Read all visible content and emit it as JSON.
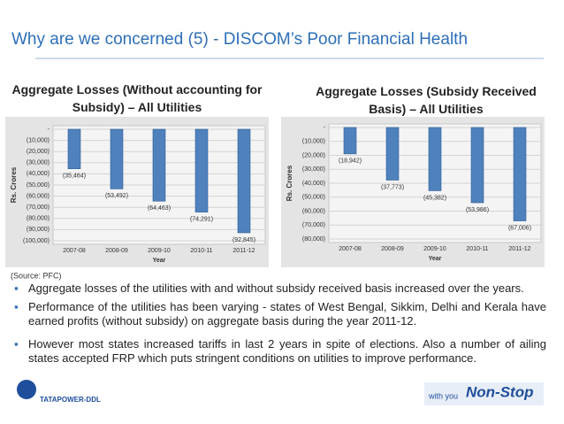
{
  "title": "Why are we concerned (5) - DISCOM’s Poor Financial Health",
  "chart_data": [
    {
      "type": "bar",
      "title": "Aggregate Losses (Without accounting for Subsidy) – All Utilities",
      "x_label": "Year",
      "y_label": "Rs. Crores",
      "categories": [
        "2007-08",
        "2008-09",
        "2009-10",
        "2010-11",
        "2011-12"
      ],
      "values": [
        -35464,
        -53492,
        -64463,
        -74291,
        -92845
      ],
      "value_labels": [
        "(35,464)",
        "(53,492)",
        "(64,463)",
        "(74,291)",
        "(92,845)"
      ],
      "color": "#4f81bd",
      "ylim": [
        -100000,
        0
      ],
      "yticks": [
        {
          "value": 0,
          "label": "-"
        },
        {
          "value": -10000,
          "label": "(10,000)"
        },
        {
          "value": -20000,
          "label": "(20,000)"
        },
        {
          "value": -30000,
          "label": "(30,000)"
        },
        {
          "value": -40000,
          "label": "(40,000)"
        },
        {
          "value": -50000,
          "label": "(50,000)"
        },
        {
          "value": -60000,
          "label": "(60,000)"
        },
        {
          "value": -70000,
          "label": "(70,000)"
        },
        {
          "value": -80000,
          "label": "(80,000)"
        },
        {
          "value": -90000,
          "label": "(90,000)"
        },
        {
          "value": -100000,
          "label": "(100,000)"
        }
      ]
    },
    {
      "type": "bar",
      "title": "Aggregate Losses (Subsidy Received Basis) – All Utilities",
      "x_label": "Year",
      "y_label": "Rs. Crores",
      "categories": [
        "2007-08",
        "2008-09",
        "2009-10",
        "2010-11",
        "2011-12"
      ],
      "values": [
        -18942,
        -37773,
        -45382,
        -53986,
        -67006
      ],
      "value_labels": [
        "(18,942)",
        "(37,773)",
        "(45,382)",
        "(53,986)",
        "(67,006)"
      ],
      "color": "#4f81bd",
      "ylim": [
        -80000,
        0
      ],
      "yticks": [
        {
          "value": 0,
          "label": "-"
        },
        {
          "value": -10000,
          "label": "(10,000)"
        },
        {
          "value": -20000,
          "label": "(20,000)"
        },
        {
          "value": -30000,
          "label": "(30,000)"
        },
        {
          "value": -40000,
          "label": "(40,000)"
        },
        {
          "value": -50000,
          "label": "(50,000)"
        },
        {
          "value": -60000,
          "label": "(60,000)"
        },
        {
          "value": -70000,
          "label": "(70,000)"
        },
        {
          "value": -80000,
          "label": "(80,000)"
        }
      ]
    }
  ],
  "source": "(Source: PFC)",
  "bullets": [
    "Aggregate losses of the utilities with and without subsidy received basis increased over the years.",
    "Performance of the utilities has been varying - states of West Bengal, Sikkim, Delhi and Kerala have earned profits (without subsidy) on aggregate basis during the year 2011-12.",
    "However most states increased tariffs in last 2 years in spite of elections. Also a number of ailing states accepted FRP which puts stringent conditions on utilities to improve performance."
  ],
  "logo": {
    "company": "TATAPOWER-DDL",
    "tagline": "with you",
    "brand": "Non-Stop"
  }
}
